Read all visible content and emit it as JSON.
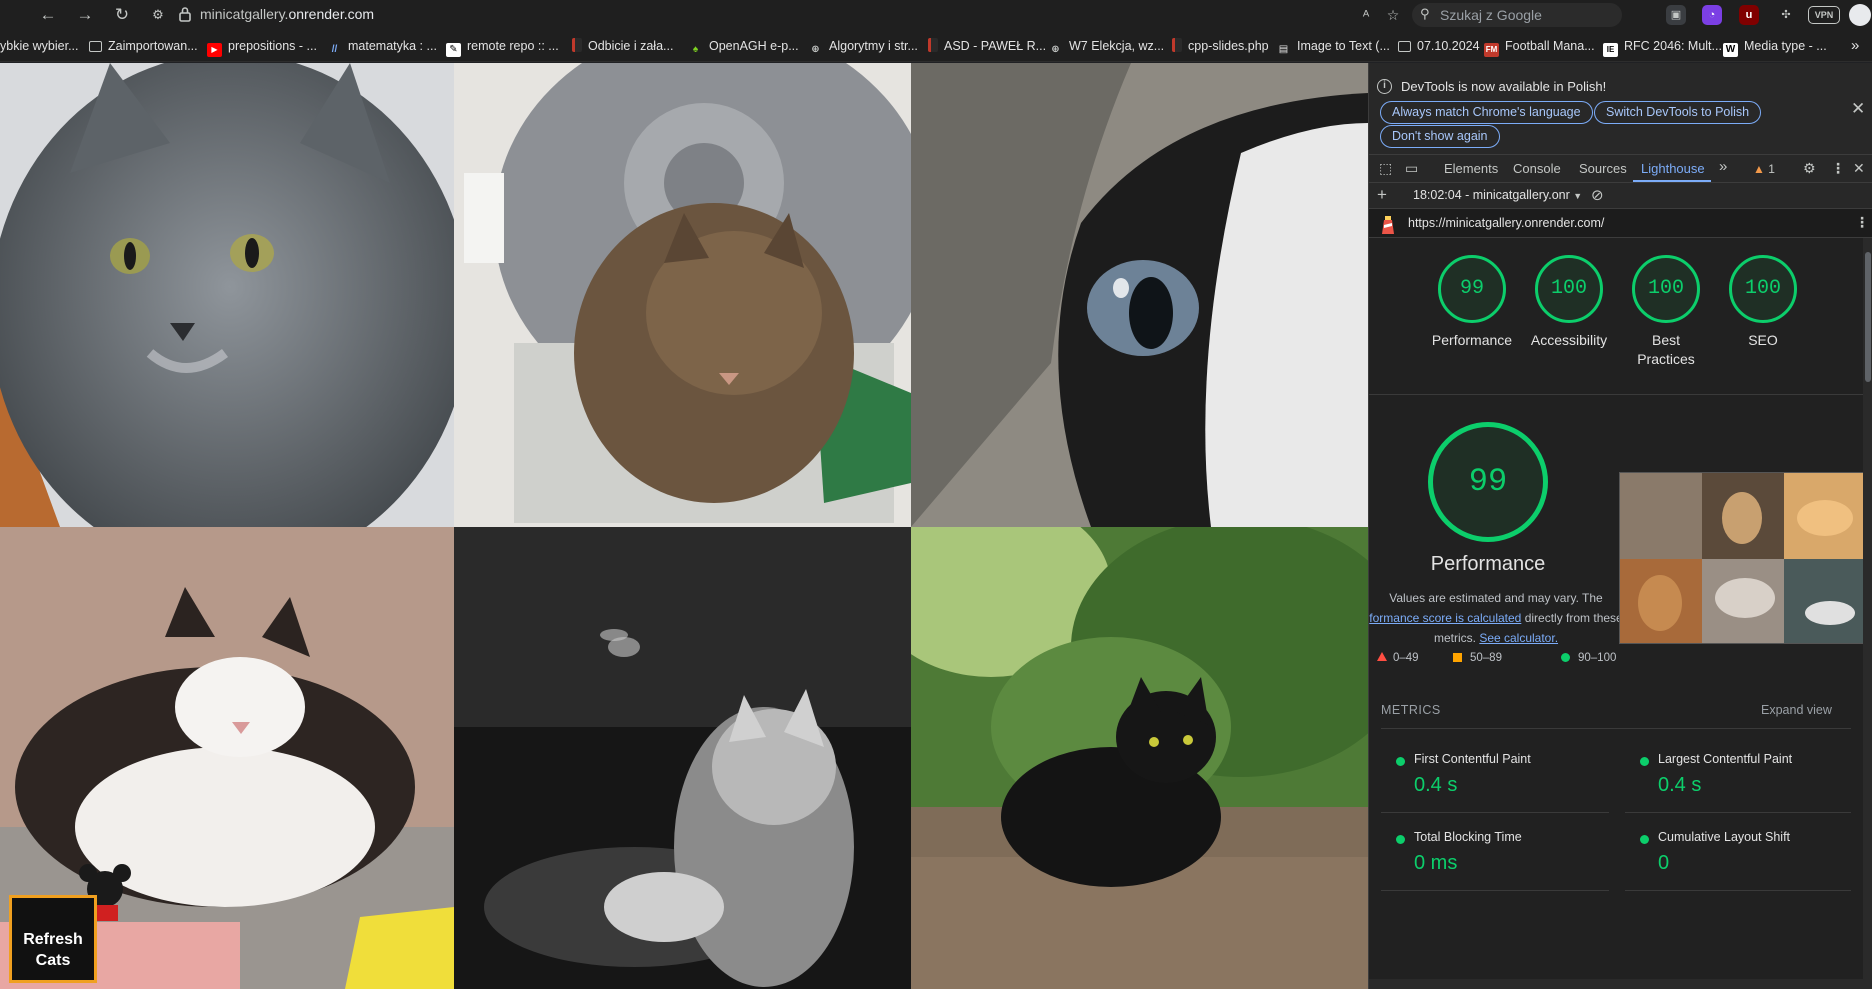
{
  "browser": {
    "url_prefix": "minicatgallery.",
    "url_domain": "onrender.com",
    "search_placeholder": "Szukaj z Google",
    "vpn_label": "VPN"
  },
  "bookmarks": [
    {
      "label": "ybkie wybier...",
      "icon": "text"
    },
    {
      "label": "Zaimportowan...",
      "icon": "folder-icon"
    },
    {
      "label": "prepositions - ...",
      "icon": "youtube-icon"
    },
    {
      "label": "matematyka : ...",
      "icon": "site-icon"
    },
    {
      "label": "remote repo :: ...",
      "icon": "site-icon"
    },
    {
      "label": "Odbicie i zała...",
      "icon": "site-icon"
    },
    {
      "label": "OpenAGH e-p...",
      "icon": "site-icon"
    },
    {
      "label": "Algorytmy i str...",
      "icon": "globe-icon"
    },
    {
      "label": "ASD - PAWEŁ R...",
      "icon": "site-icon"
    },
    {
      "label": "W7 Elekcja, wz...",
      "icon": "globe-icon"
    },
    {
      "label": "cpp-slides.php",
      "icon": "site-icon"
    },
    {
      "label": "Image to Text (...",
      "icon": "site-icon"
    },
    {
      "label": "07.10.2024",
      "icon": "folder-icon"
    },
    {
      "label": "Football Mana...",
      "icon": "site-icon"
    },
    {
      "label": "RFC 2046: Mult...",
      "icon": "site-icon"
    },
    {
      "label": "Media type - ...",
      "icon": "site-icon"
    }
  ],
  "gallery": {
    "refresh_button": "Refresh Cats"
  },
  "devtools": {
    "info_text": "DevTools is now available in Polish!",
    "btn_match": "Always match Chrome's language",
    "btn_switch": "Switch DevTools to Polish",
    "btn_dont_show": "Don't show again",
    "tabs": [
      "Elements",
      "Console",
      "Sources",
      "Lighthouse"
    ],
    "active_tab": "Lighthouse",
    "warning_count": "1",
    "report_select": "18:02:04 - minicatgallery.onr",
    "report_url": "https://minicatgallery.onrender.com/"
  },
  "lighthouse": {
    "scores": [
      {
        "value": "99",
        "label": "Performance"
      },
      {
        "value": "100",
        "label": "Accessibility"
      },
      {
        "value": "100",
        "label": "Best Practices"
      },
      {
        "value": "100",
        "label": "SEO"
      }
    ],
    "perf_score": "99",
    "perf_title": "Performance",
    "note_pre": "Values are estimated and may vary. The",
    "note_link": "formance score is calculated",
    "note_mid": "directly from these metrics.",
    "note_calc": "See calculator.",
    "legend_fail": "0–49",
    "legend_avg": "50–89",
    "legend_pass": "90–100",
    "metrics_title": "METRICS",
    "expand_view": "Expand view",
    "metrics": [
      {
        "name": "First Contentful Paint",
        "value": "0.4 s"
      },
      {
        "name": "Largest Contentful Paint",
        "value": "0.4 s"
      },
      {
        "name": "Total Blocking Time",
        "value": "0 ms"
      },
      {
        "name": "Cumulative Layout Shift",
        "value": "0"
      }
    ]
  },
  "colors": {
    "pass": "#0cce6b",
    "average": "#ffa400",
    "accent": "#7cacf8"
  }
}
